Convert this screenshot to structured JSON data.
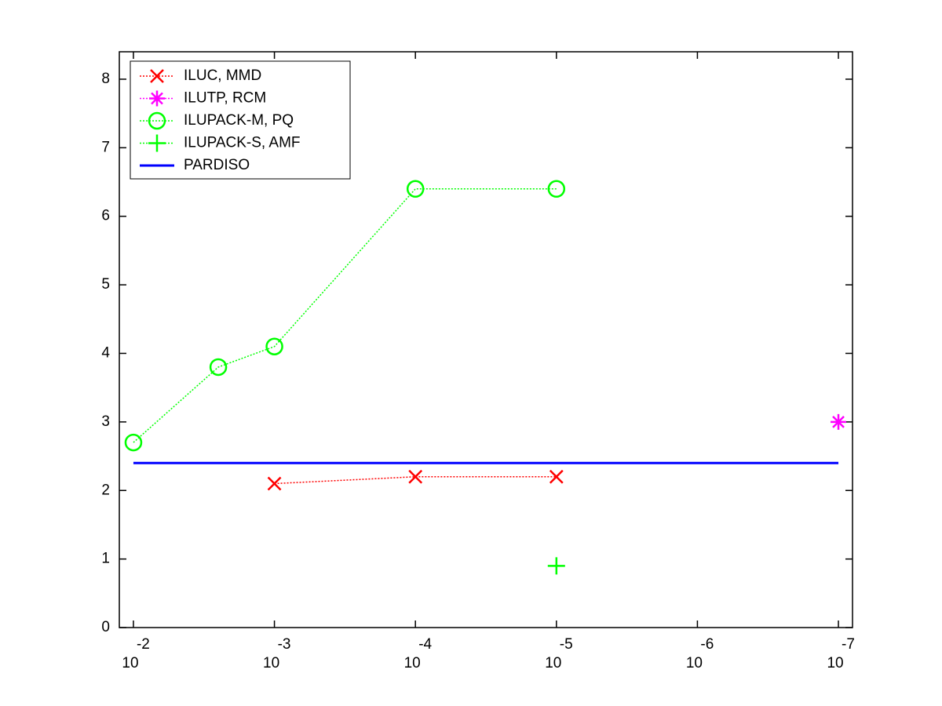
{
  "chart_data": {
    "type": "line",
    "xscale": "log",
    "x_reversed": true,
    "xlim": [
      0.012589,
      7.943e-08
    ],
    "xticks": [
      {
        "value": 0.01,
        "label": "10",
        "exponent": "-2"
      },
      {
        "value": 0.001,
        "label": "10",
        "exponent": "-3"
      },
      {
        "value": 0.0001,
        "label": "10",
        "exponent": "-4"
      },
      {
        "value": 1e-05,
        "label": "10",
        "exponent": "-5"
      },
      {
        "value": 1e-06,
        "label": "10",
        "exponent": "-6"
      },
      {
        "value": 1e-07,
        "label": "10",
        "exponent": "-7"
      }
    ],
    "ylim": [
      0,
      8.4
    ],
    "yticks": [
      0,
      1,
      2,
      3,
      4,
      5,
      6,
      7,
      8
    ],
    "legend": "upper-left",
    "series": [
      {
        "name": "ILUC, MMD",
        "color": "#ff0000",
        "marker": "x",
        "linestyle": "dotted",
        "x": [
          0.001,
          0.0001,
          1e-05
        ],
        "values": [
          2.1,
          2.2,
          2.2
        ]
      },
      {
        "name": "ILUTP, RCM",
        "color": "#ff00ff",
        "marker": "star",
        "linestyle": "dotted",
        "x": [
          1e-07
        ],
        "values": [
          3.0
        ]
      },
      {
        "name": "ILUPACK-M, PQ",
        "color": "#00ff00",
        "marker": "circle",
        "linestyle": "dotted",
        "x": [
          0.01,
          0.0025,
          0.001,
          0.0001,
          1e-05
        ],
        "values": [
          2.7,
          3.8,
          4.1,
          6.4,
          6.4
        ]
      },
      {
        "name": "ILUPACK-S, AMF",
        "color": "#00ff00",
        "marker": "plus",
        "linestyle": "dotted",
        "x": [
          1e-05
        ],
        "values": [
          0.9
        ]
      },
      {
        "name": "PARDISO",
        "color": "#0000ff",
        "marker": "none",
        "linestyle": "solid",
        "x": [
          0.01,
          1e-07
        ],
        "values": [
          2.4,
          2.4
        ]
      }
    ]
  }
}
